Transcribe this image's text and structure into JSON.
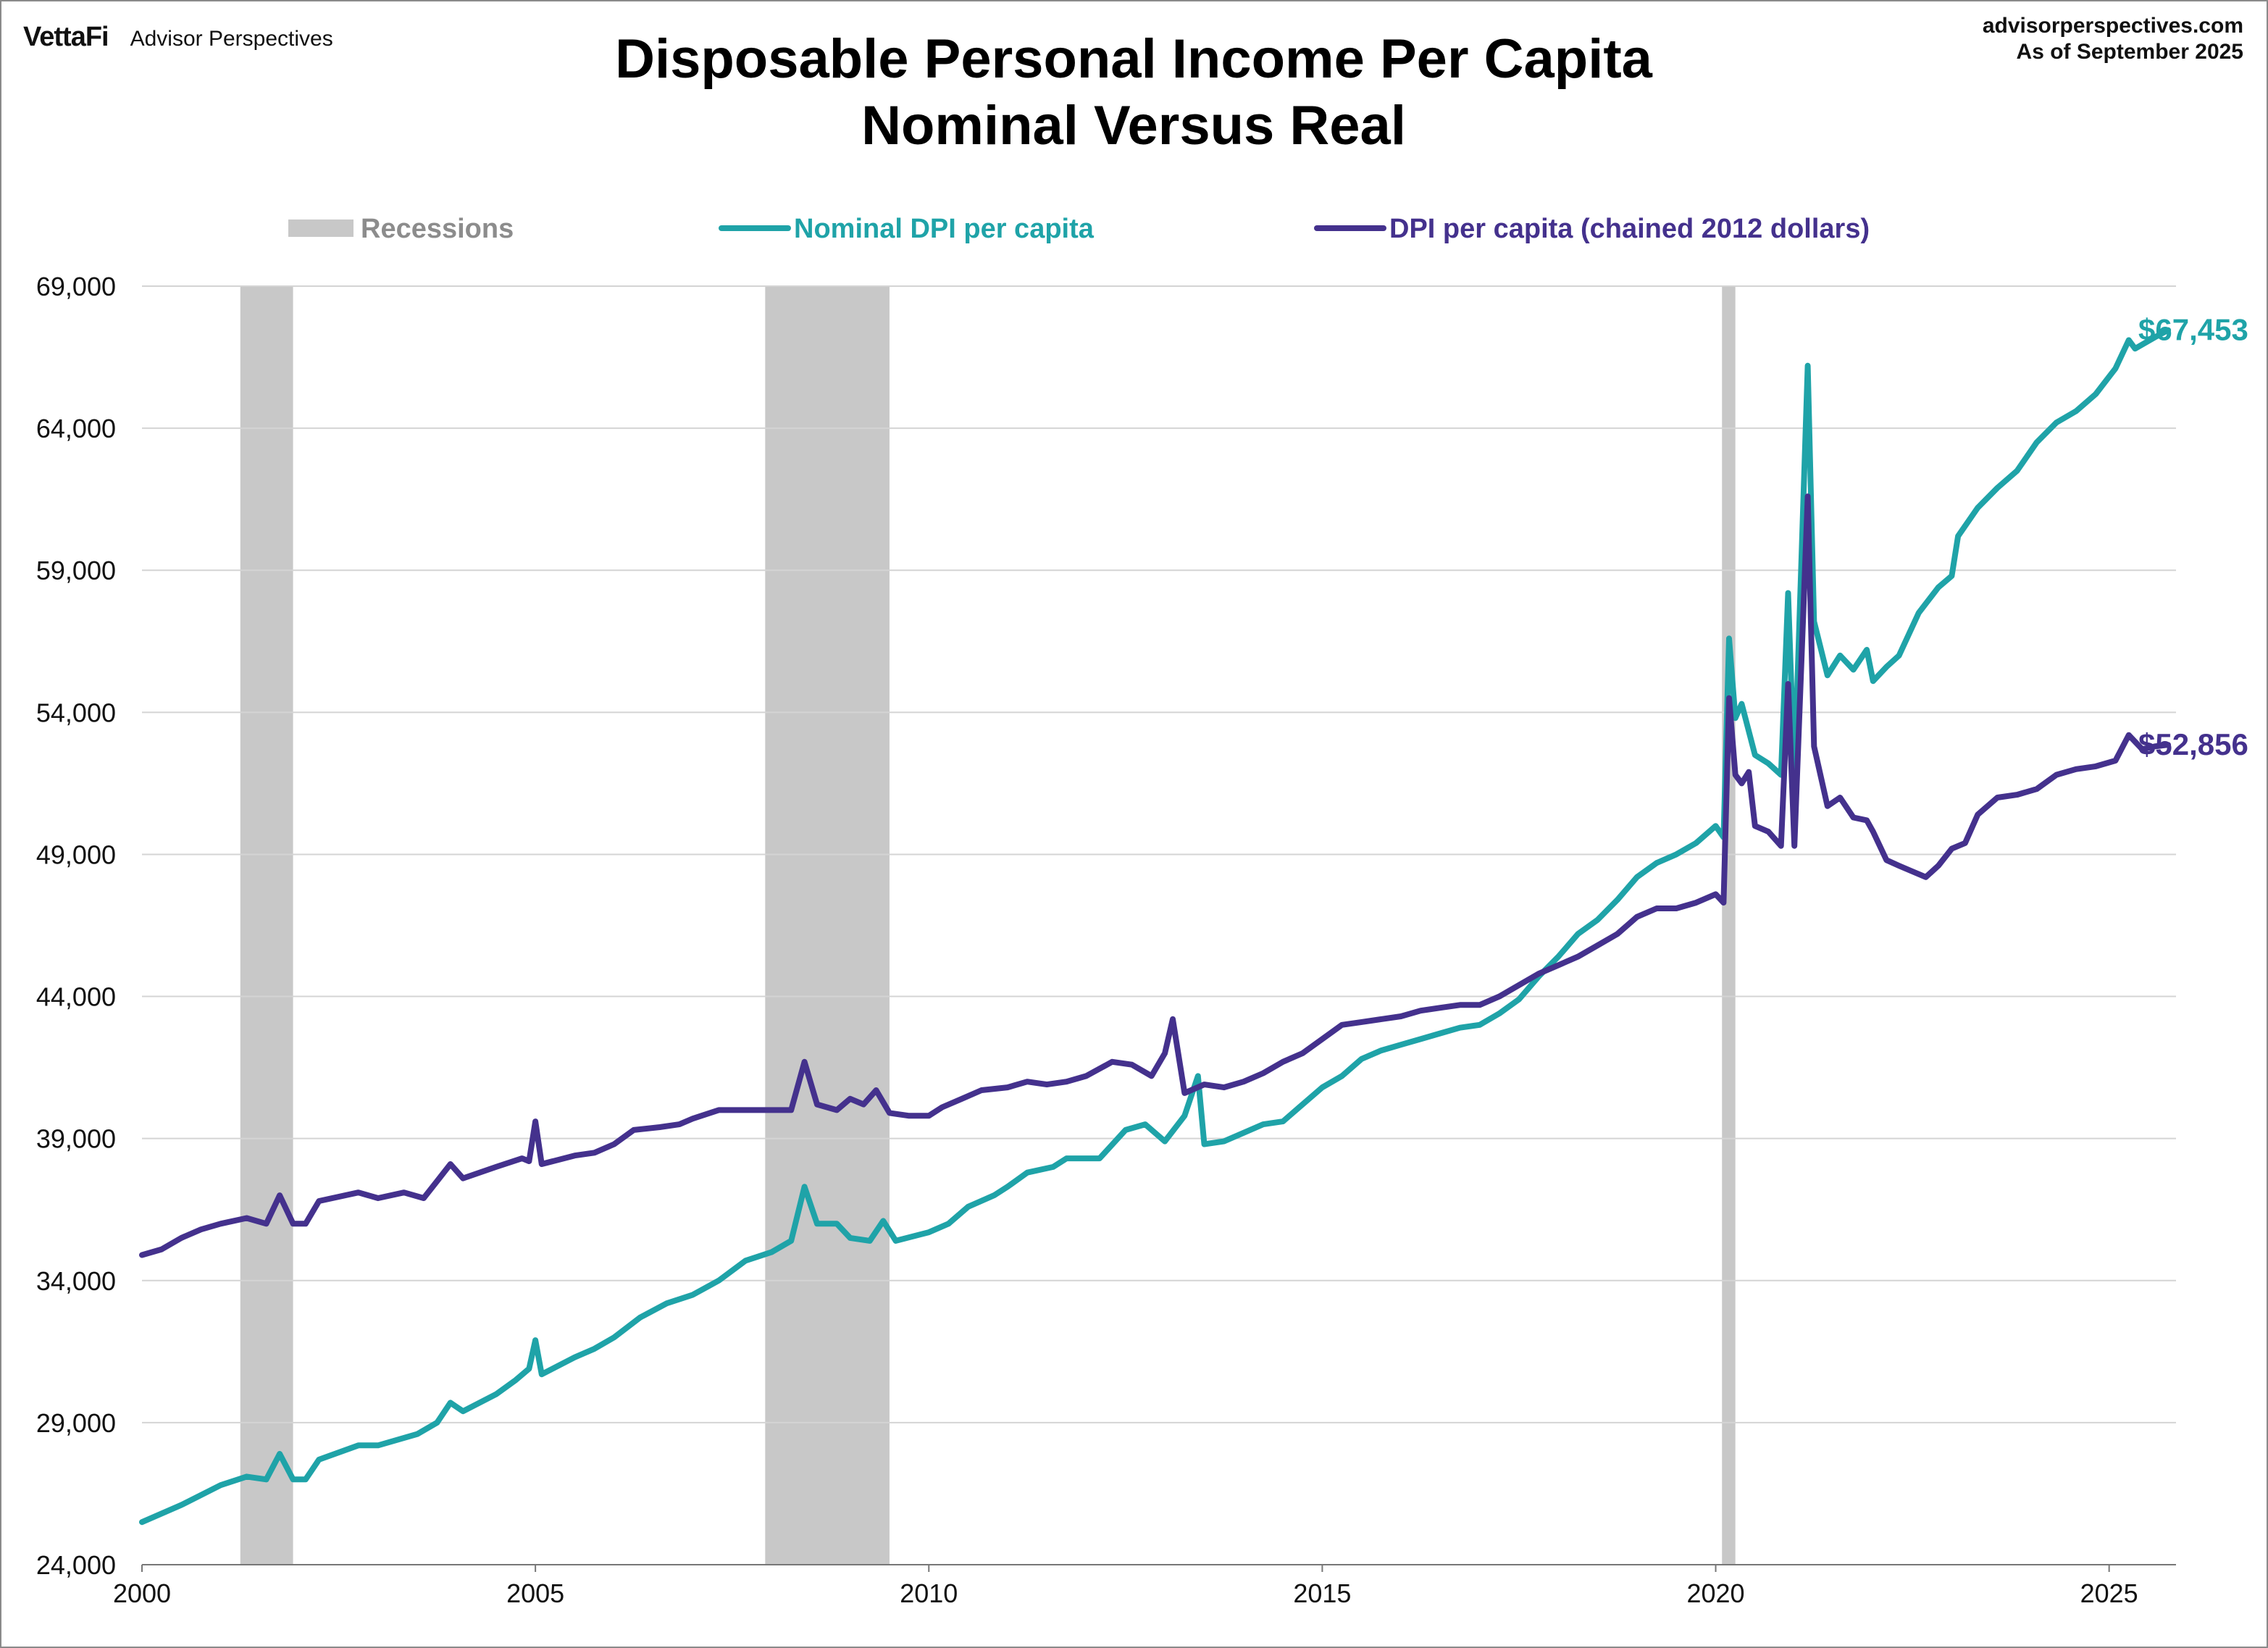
{
  "brand": {
    "logo": "VettaFi",
    "name": "Advisor Perspectives"
  },
  "source": {
    "site": "advisorperspectives.com",
    "asof": "As of September 2025"
  },
  "chart_data": {
    "type": "line",
    "title": "Disposable Personal Income Per Capita",
    "subtitle": "Nominal Versus Real",
    "x_range": [
      2000,
      2025.85
    ],
    "ylim": [
      24000,
      69000
    ],
    "y_ticks": [
      24000,
      29000,
      34000,
      39000,
      44000,
      49000,
      54000,
      59000,
      64000,
      69000
    ],
    "y_tick_labels": [
      "24,000",
      "29,000",
      "34,000",
      "39,000",
      "44,000",
      "49,000",
      "54,000",
      "59,000",
      "64,000",
      "69,000"
    ],
    "x_ticks": [
      2000,
      2005,
      2010,
      2015,
      2020,
      2025
    ],
    "x_tick_labels": [
      "2000",
      "2005",
      "2010",
      "2015",
      "2020",
      "2025"
    ],
    "grid": "horizontal",
    "legend_position": "top",
    "recessions_label": "Recessions",
    "recessions": [
      [
        2001.25,
        2001.92
      ],
      [
        2007.92,
        2009.5
      ],
      [
        2020.08,
        2020.25
      ]
    ],
    "series": [
      {
        "name": "Nominal DPI per capita",
        "color": "#1fa3a8",
        "end_label": "$67,453",
        "points": [
          [
            2000.0,
            25500
          ],
          [
            2000.5,
            26100
          ],
          [
            2001.0,
            26800
          ],
          [
            2001.33,
            27100
          ],
          [
            2001.58,
            27000
          ],
          [
            2001.75,
            27900
          ],
          [
            2001.92,
            27000
          ],
          [
            2002.08,
            27000
          ],
          [
            2002.25,
            27700
          ],
          [
            2002.75,
            28200
          ],
          [
            2003.0,
            28200
          ],
          [
            2003.5,
            28600
          ],
          [
            2003.75,
            29000
          ],
          [
            2003.92,
            29700
          ],
          [
            2004.08,
            29400
          ],
          [
            2004.5,
            30000
          ],
          [
            2004.75,
            30500
          ],
          [
            2004.92,
            30900
          ],
          [
            2005.0,
            31900
          ],
          [
            2005.08,
            30700
          ],
          [
            2005.5,
            31300
          ],
          [
            2005.75,
            31600
          ],
          [
            2006.0,
            32000
          ],
          [
            2006.33,
            32700
          ],
          [
            2006.67,
            33200
          ],
          [
            2007.0,
            33500
          ],
          [
            2007.33,
            34000
          ],
          [
            2007.67,
            34700
          ],
          [
            2008.0,
            35000
          ],
          [
            2008.25,
            35400
          ],
          [
            2008.42,
            37300
          ],
          [
            2008.58,
            36000
          ],
          [
            2008.83,
            36000
          ],
          [
            2009.0,
            35500
          ],
          [
            2009.25,
            35400
          ],
          [
            2009.42,
            36100
          ],
          [
            2009.58,
            35400
          ],
          [
            2010.0,
            35700
          ],
          [
            2010.25,
            36000
          ],
          [
            2010.5,
            36600
          ],
          [
            2010.83,
            37000
          ],
          [
            2011.0,
            37300
          ],
          [
            2011.25,
            37800
          ],
          [
            2011.58,
            38000
          ],
          [
            2011.75,
            38300
          ],
          [
            2012.17,
            38300
          ],
          [
            2012.5,
            39300
          ],
          [
            2012.75,
            39500
          ],
          [
            2013.0,
            38900
          ],
          [
            2013.25,
            39800
          ],
          [
            2013.42,
            41200
          ],
          [
            2013.5,
            38800
          ],
          [
            2013.75,
            38900
          ],
          [
            2014.0,
            39200
          ],
          [
            2014.25,
            39500
          ],
          [
            2014.5,
            39600
          ],
          [
            2014.75,
            40200
          ],
          [
            2015.0,
            40800
          ],
          [
            2015.25,
            41200
          ],
          [
            2015.5,
            41800
          ],
          [
            2015.75,
            42100
          ],
          [
            2016.0,
            42300
          ],
          [
            2016.25,
            42500
          ],
          [
            2016.5,
            42700
          ],
          [
            2016.75,
            42900
          ],
          [
            2017.0,
            43000
          ],
          [
            2017.25,
            43400
          ],
          [
            2017.5,
            43900
          ],
          [
            2017.75,
            44700
          ],
          [
            2018.0,
            45400
          ],
          [
            2018.25,
            46200
          ],
          [
            2018.5,
            46700
          ],
          [
            2018.75,
            47400
          ],
          [
            2019.0,
            48200
          ],
          [
            2019.25,
            48700
          ],
          [
            2019.5,
            49000
          ],
          [
            2019.75,
            49400
          ],
          [
            2020.0,
            50000
          ],
          [
            2020.1,
            49600
          ],
          [
            2020.17,
            56600
          ],
          [
            2020.25,
            53800
          ],
          [
            2020.33,
            54300
          ],
          [
            2020.5,
            52500
          ],
          [
            2020.67,
            52200
          ],
          [
            2020.83,
            51800
          ],
          [
            2020.92,
            58200
          ],
          [
            2021.0,
            51800
          ],
          [
            2021.17,
            66200
          ],
          [
            2021.25,
            57200
          ],
          [
            2021.42,
            55300
          ],
          [
            2021.58,
            56000
          ],
          [
            2021.75,
            55500
          ],
          [
            2021.92,
            56200
          ],
          [
            2022.0,
            55100
          ],
          [
            2022.17,
            55600
          ],
          [
            2022.33,
            56000
          ],
          [
            2022.58,
            57500
          ],
          [
            2022.83,
            58400
          ],
          [
            2023.0,
            58800
          ],
          [
            2023.08,
            60200
          ],
          [
            2023.33,
            61200
          ],
          [
            2023.58,
            61900
          ],
          [
            2023.83,
            62500
          ],
          [
            2024.08,
            63500
          ],
          [
            2024.33,
            64200
          ],
          [
            2024.58,
            64600
          ],
          [
            2024.83,
            65200
          ],
          [
            2025.08,
            66100
          ],
          [
            2025.25,
            67100
          ],
          [
            2025.33,
            66800
          ],
          [
            2025.58,
            67200
          ],
          [
            2025.75,
            67453
          ]
        ]
      },
      {
        "name": "DPI per capita (chained 2012 dollars)",
        "color": "#44318d",
        "end_label": "$52,856",
        "points": [
          [
            2000.0,
            34900
          ],
          [
            2000.25,
            35100
          ],
          [
            2000.5,
            35500
          ],
          [
            2000.75,
            35800
          ],
          [
            2001.0,
            36000
          ],
          [
            2001.33,
            36200
          ],
          [
            2001.58,
            36000
          ],
          [
            2001.75,
            37000
          ],
          [
            2001.92,
            36000
          ],
          [
            2002.08,
            36000
          ],
          [
            2002.25,
            36800
          ],
          [
            2002.75,
            37100
          ],
          [
            2003.0,
            36900
          ],
          [
            2003.33,
            37100
          ],
          [
            2003.58,
            36900
          ],
          [
            2003.75,
            37500
          ],
          [
            2003.92,
            38100
          ],
          [
            2004.08,
            37600
          ],
          [
            2004.5,
            38000
          ],
          [
            2004.83,
            38300
          ],
          [
            2004.92,
            38200
          ],
          [
            2005.0,
            39600
          ],
          [
            2005.08,
            38100
          ],
          [
            2005.5,
            38400
          ],
          [
            2005.75,
            38500
          ],
          [
            2006.0,
            38800
          ],
          [
            2006.25,
            39300
          ],
          [
            2006.58,
            39400
          ],
          [
            2006.83,
            39500
          ],
          [
            2007.0,
            39700
          ],
          [
            2007.33,
            40000
          ],
          [
            2007.67,
            40000
          ],
          [
            2008.0,
            40000
          ],
          [
            2008.25,
            40000
          ],
          [
            2008.42,
            41700
          ],
          [
            2008.58,
            40200
          ],
          [
            2008.83,
            40000
          ],
          [
            2009.0,
            40400
          ],
          [
            2009.17,
            40200
          ],
          [
            2009.33,
            40700
          ],
          [
            2009.5,
            39900
          ],
          [
            2009.75,
            39800
          ],
          [
            2010.0,
            39800
          ],
          [
            2010.17,
            40100
          ],
          [
            2010.42,
            40400
          ],
          [
            2010.67,
            40700
          ],
          [
            2011.0,
            40800
          ],
          [
            2011.25,
            41000
          ],
          [
            2011.5,
            40900
          ],
          [
            2011.75,
            41000
          ],
          [
            2012.0,
            41200
          ],
          [
            2012.33,
            41700
          ],
          [
            2012.58,
            41600
          ],
          [
            2012.83,
            41200
          ],
          [
            2013.0,
            42000
          ],
          [
            2013.1,
            43200
          ],
          [
            2013.25,
            40600
          ],
          [
            2013.5,
            40900
          ],
          [
            2013.75,
            40800
          ],
          [
            2014.0,
            41000
          ],
          [
            2014.25,
            41300
          ],
          [
            2014.5,
            41700
          ],
          [
            2014.75,
            42000
          ],
          [
            2015.0,
            42500
          ],
          [
            2015.25,
            43000
          ],
          [
            2015.5,
            43100
          ],
          [
            2015.75,
            43200
          ],
          [
            2016.0,
            43300
          ],
          [
            2016.25,
            43500
          ],
          [
            2016.5,
            43600
          ],
          [
            2016.75,
            43700
          ],
          [
            2017.0,
            43700
          ],
          [
            2017.25,
            44000
          ],
          [
            2017.5,
            44400
          ],
          [
            2017.75,
            44800
          ],
          [
            2018.0,
            45100
          ],
          [
            2018.25,
            45400
          ],
          [
            2018.5,
            45800
          ],
          [
            2018.75,
            46200
          ],
          [
            2019.0,
            46800
          ],
          [
            2019.25,
            47100
          ],
          [
            2019.5,
            47100
          ],
          [
            2019.75,
            47300
          ],
          [
            2020.0,
            47600
          ],
          [
            2020.1,
            47300
          ],
          [
            2020.17,
            54500
          ],
          [
            2020.25,
            51800
          ],
          [
            2020.33,
            51500
          ],
          [
            2020.42,
            51900
          ],
          [
            2020.5,
            50000
          ],
          [
            2020.67,
            49800
          ],
          [
            2020.83,
            49300
          ],
          [
            2020.92,
            55000
          ],
          [
            2021.0,
            49300
          ],
          [
            2021.17,
            61600
          ],
          [
            2021.25,
            52800
          ],
          [
            2021.42,
            50700
          ],
          [
            2021.58,
            51000
          ],
          [
            2021.75,
            50300
          ],
          [
            2021.92,
            50200
          ],
          [
            2022.0,
            49800
          ],
          [
            2022.17,
            48800
          ],
          [
            2022.33,
            48600
          ],
          [
            2022.5,
            48400
          ],
          [
            2022.67,
            48200
          ],
          [
            2022.83,
            48600
          ],
          [
            2023.0,
            49200
          ],
          [
            2023.17,
            49400
          ],
          [
            2023.33,
            50400
          ],
          [
            2023.58,
            51000
          ],
          [
            2023.83,
            51100
          ],
          [
            2024.08,
            51300
          ],
          [
            2024.33,
            51800
          ],
          [
            2024.58,
            52000
          ],
          [
            2024.83,
            52100
          ],
          [
            2025.08,
            52300
          ],
          [
            2025.25,
            53200
          ],
          [
            2025.42,
            52700
          ],
          [
            2025.58,
            52800
          ],
          [
            2025.75,
            52856
          ]
        ]
      }
    ]
  }
}
